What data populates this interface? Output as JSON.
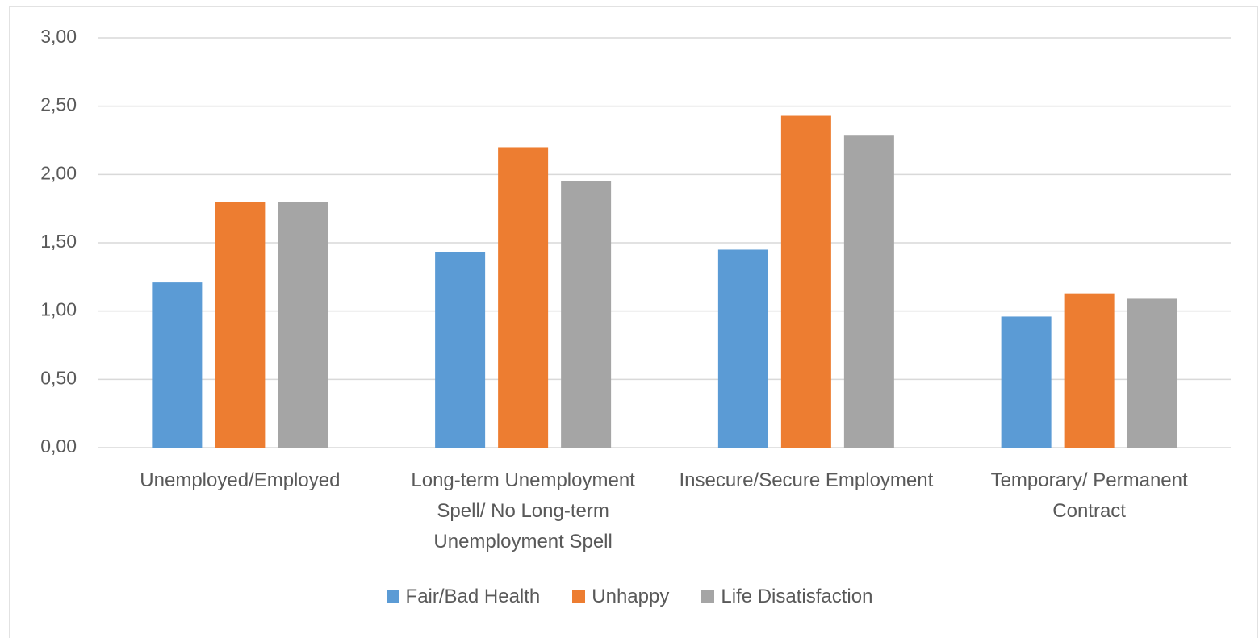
{
  "chart_data": {
    "type": "bar",
    "categories": [
      "Unemployed/Employed",
      "Long-term Unemployment Spell/ No Long-term Unemployment Spell",
      "Insecure/Secure Employment",
      "Temporary/ Permanent Contract"
    ],
    "series": [
      {
        "name": "Fair/Bad Health",
        "color": "#5b9bd5",
        "values": [
          1.21,
          1.43,
          1.45,
          0.96
        ]
      },
      {
        "name": "Unhappy",
        "color": "#ed7d31",
        "values": [
          1.8,
          2.2,
          2.43,
          1.13
        ]
      },
      {
        "name": "Life Disatisfaction",
        "color": "#a5a5a5",
        "values": [
          1.8,
          1.95,
          2.29,
          1.09
        ]
      }
    ],
    "ylim": [
      0,
      3
    ],
    "yticks": [
      {
        "value": 0,
        "label": "0,00"
      },
      {
        "value": 0.5,
        "label": "0,50"
      },
      {
        "value": 1,
        "label": "1,00"
      },
      {
        "value": 1.5,
        "label": "1,50"
      },
      {
        "value": 2,
        "label": "2,00"
      },
      {
        "value": 2.5,
        "label": "2,50"
      },
      {
        "value": 3,
        "label": "3,00"
      }
    ],
    "grid": true,
    "legend": "bottom"
  }
}
